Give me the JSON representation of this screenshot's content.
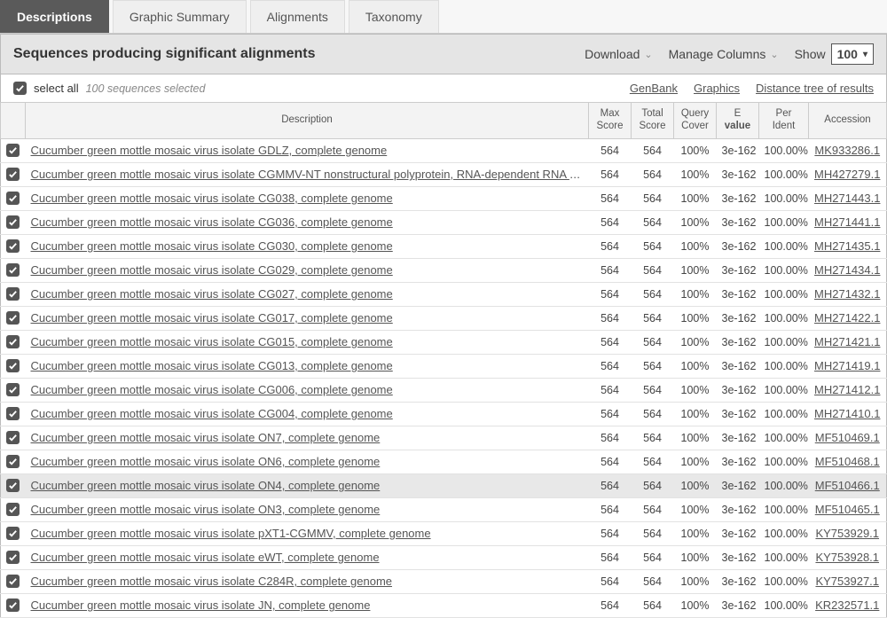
{
  "tabs": [
    {
      "label": "Descriptions",
      "active": true
    },
    {
      "label": "Graphic Summary",
      "active": false
    },
    {
      "label": "Alignments",
      "active": false
    },
    {
      "label": "Taxonomy",
      "active": false
    }
  ],
  "panel": {
    "title": "Sequences producing significant alignments",
    "download": "Download",
    "manage": "Manage Columns",
    "show_label": "Show",
    "show_value": "100"
  },
  "subbar": {
    "select_all": "select all",
    "hint": "100 sequences selected",
    "links": [
      "GenBank",
      "Graphics",
      "Distance tree of results"
    ]
  },
  "columns": {
    "description": "Description",
    "max_score": "Max Score",
    "total_score": "Total Score",
    "query_cover": "Query Cover",
    "e_value_top": "E",
    "e_value_bot": "value",
    "per_ident": "Per Ident",
    "accession": "Accession"
  },
  "rows": [
    {
      "desc": "Cucumber green mottle mosaic virus isolate GDLZ, complete genome",
      "max": "564",
      "total": "564",
      "cover": "100%",
      "e": "3e-162",
      "ident": "100.00%",
      "acc": "MK933286.1",
      "hl": false
    },
    {
      "desc": "Cucumber green mottle mosaic virus isolate CGMMV-NT nonstructural polyprotein, RNA-dependent RNA polymerase, movement protein, and",
      "max": "564",
      "total": "564",
      "cover": "100%",
      "e": "3e-162",
      "ident": "100.00%",
      "acc": "MH427279.1",
      "hl": false
    },
    {
      "desc": "Cucumber green mottle mosaic virus isolate CG038, complete genome",
      "max": "564",
      "total": "564",
      "cover": "100%",
      "e": "3e-162",
      "ident": "100.00%",
      "acc": "MH271443.1",
      "hl": false
    },
    {
      "desc": "Cucumber green mottle mosaic virus isolate CG036, complete genome",
      "max": "564",
      "total": "564",
      "cover": "100%",
      "e": "3e-162",
      "ident": "100.00%",
      "acc": "MH271441.1",
      "hl": false
    },
    {
      "desc": "Cucumber green mottle mosaic virus isolate CG030, complete genome",
      "max": "564",
      "total": "564",
      "cover": "100%",
      "e": "3e-162",
      "ident": "100.00%",
      "acc": "MH271435.1",
      "hl": false
    },
    {
      "desc": "Cucumber green mottle mosaic virus isolate CG029, complete genome",
      "max": "564",
      "total": "564",
      "cover": "100%",
      "e": "3e-162",
      "ident": "100.00%",
      "acc": "MH271434.1",
      "hl": false
    },
    {
      "desc": "Cucumber green mottle mosaic virus isolate CG027, complete genome",
      "max": "564",
      "total": "564",
      "cover": "100%",
      "e": "3e-162",
      "ident": "100.00%",
      "acc": "MH271432.1",
      "hl": false
    },
    {
      "desc": "Cucumber green mottle mosaic virus isolate CG017, complete genome",
      "max": "564",
      "total": "564",
      "cover": "100%",
      "e": "3e-162",
      "ident": "100.00%",
      "acc": "MH271422.1",
      "hl": false
    },
    {
      "desc": "Cucumber green mottle mosaic virus isolate CG015, complete genome",
      "max": "564",
      "total": "564",
      "cover": "100%",
      "e": "3e-162",
      "ident": "100.00%",
      "acc": "MH271421.1",
      "hl": false
    },
    {
      "desc": "Cucumber green mottle mosaic virus isolate CG013, complete genome",
      "max": "564",
      "total": "564",
      "cover": "100%",
      "e": "3e-162",
      "ident": "100.00%",
      "acc": "MH271419.1",
      "hl": false
    },
    {
      "desc": "Cucumber green mottle mosaic virus isolate CG006, complete genome",
      "max": "564",
      "total": "564",
      "cover": "100%",
      "e": "3e-162",
      "ident": "100.00%",
      "acc": "MH271412.1",
      "hl": false
    },
    {
      "desc": "Cucumber green mottle mosaic virus isolate CG004, complete genome",
      "max": "564",
      "total": "564",
      "cover": "100%",
      "e": "3e-162",
      "ident": "100.00%",
      "acc": "MH271410.1",
      "hl": false
    },
    {
      "desc": "Cucumber green mottle mosaic virus isolate ON7, complete genome",
      "max": "564",
      "total": "564",
      "cover": "100%",
      "e": "3e-162",
      "ident": "100.00%",
      "acc": "MF510469.1",
      "hl": false
    },
    {
      "desc": "Cucumber green mottle mosaic virus isolate ON6, complete genome",
      "max": "564",
      "total": "564",
      "cover": "100%",
      "e": "3e-162",
      "ident": "100.00%",
      "acc": "MF510468.1",
      "hl": false
    },
    {
      "desc": "Cucumber green mottle mosaic virus isolate ON4, complete genome",
      "max": "564",
      "total": "564",
      "cover": "100%",
      "e": "3e-162",
      "ident": "100.00%",
      "acc": "MF510466.1",
      "hl": true
    },
    {
      "desc": "Cucumber green mottle mosaic virus isolate ON3, complete genome",
      "max": "564",
      "total": "564",
      "cover": "100%",
      "e": "3e-162",
      "ident": "100.00%",
      "acc": "MF510465.1",
      "hl": false
    },
    {
      "desc": "Cucumber green mottle mosaic virus isolate pXT1-CGMMV, complete genome",
      "max": "564",
      "total": "564",
      "cover": "100%",
      "e": "3e-162",
      "ident": "100.00%",
      "acc": "KY753929.1",
      "hl": false
    },
    {
      "desc": "Cucumber green mottle mosaic virus isolate eWT, complete genome",
      "max": "564",
      "total": "564",
      "cover": "100%",
      "e": "3e-162",
      "ident": "100.00%",
      "acc": "KY753928.1",
      "hl": false
    },
    {
      "desc": "Cucumber green mottle mosaic virus isolate C284R, complete genome",
      "max": "564",
      "total": "564",
      "cover": "100%",
      "e": "3e-162",
      "ident": "100.00%",
      "acc": "KY753927.1",
      "hl": false
    },
    {
      "desc": "Cucumber green mottle mosaic virus isolate JN, complete genome",
      "max": "564",
      "total": "564",
      "cover": "100%",
      "e": "3e-162",
      "ident": "100.00%",
      "acc": "KR232571.1",
      "hl": false
    }
  ]
}
